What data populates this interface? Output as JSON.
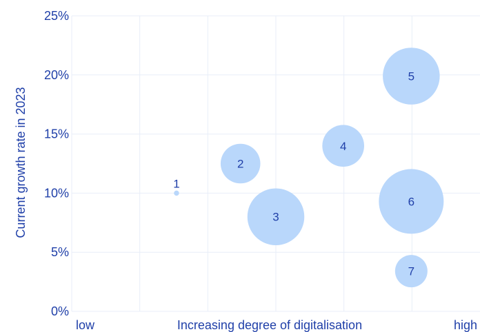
{
  "chart_data": {
    "type": "scatter",
    "subtype": "bubble",
    "title": "",
    "xlabel": "Increasing degree of digitalisation",
    "xlabel_low": "low",
    "xlabel_high": "high",
    "ylabel": "Current growth rate in 2023",
    "ylim": [
      0,
      25
    ],
    "yticks": [
      "0%",
      "5%",
      "10%",
      "15%",
      "20%",
      "25%"
    ],
    "ytick_values": [
      0,
      5,
      10,
      15,
      20,
      25
    ],
    "xlim": [
      0,
      6
    ],
    "x_gridlines": [
      1,
      2,
      3,
      4,
      5
    ],
    "grid": true,
    "colors": {
      "bubble": "#b9d7fb",
      "text": "#1f3fa8",
      "grid": "#e8eef8"
    },
    "points": [
      {
        "label": "1",
        "x": 1.54,
        "y": 10.0,
        "size": 0.3
      },
      {
        "label": "2",
        "x": 2.48,
        "y": 12.5,
        "size": 18
      },
      {
        "label": "3",
        "x": 3.0,
        "y": 8.0,
        "size": 37
      },
      {
        "label": "4",
        "x": 3.99,
        "y": 14.0,
        "size": 20
      },
      {
        "label": "5",
        "x": 4.99,
        "y": 19.9,
        "size": 37
      },
      {
        "label": "6",
        "x": 4.99,
        "y": 9.3,
        "size": 48
      },
      {
        "label": "7",
        "x": 4.99,
        "y": 3.4,
        "size": 12
      }
    ]
  }
}
